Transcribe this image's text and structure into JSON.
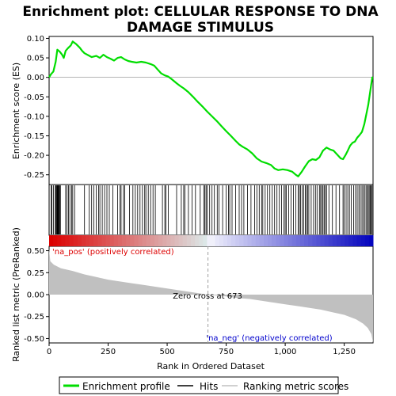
{
  "chart_data": {
    "type": "line",
    "title_lines": [
      "Enrichment plot: CELLULAR RESPONSE TO DNA",
      "DAMAGE STIMULUS"
    ],
    "panels": {
      "enrichment": {
        "ylabel": "Enrichment score (ES)",
        "ylim": [
          -0.275,
          0.105
        ],
        "yticks": [
          -0.25,
          -0.2,
          -0.15,
          -0.1,
          -0.05,
          0.0,
          0.05,
          0.1
        ],
        "ytick_labels": [
          "-0.25",
          "-0.20",
          "-0.15",
          "-0.10",
          "-0.05",
          "0.00",
          "0.05",
          "0.10"
        ],
        "series_name": "Enrichment profile",
        "color": "#00dd00",
        "points": [
          [
            0,
            0.0
          ],
          [
            8,
            0.008
          ],
          [
            18,
            0.015
          ],
          [
            28,
            0.04
          ],
          [
            35,
            0.071
          ],
          [
            45,
            0.066
          ],
          [
            55,
            0.058
          ],
          [
            62,
            0.05
          ],
          [
            70,
            0.068
          ],
          [
            80,
            0.075
          ],
          [
            92,
            0.082
          ],
          [
            100,
            0.092
          ],
          [
            115,
            0.085
          ],
          [
            130,
            0.076
          ],
          [
            140,
            0.068
          ],
          [
            150,
            0.062
          ],
          [
            165,
            0.057
          ],
          [
            180,
            0.052
          ],
          [
            200,
            0.055
          ],
          [
            215,
            0.05
          ],
          [
            230,
            0.058
          ],
          [
            245,
            0.052
          ],
          [
            260,
            0.048
          ],
          [
            275,
            0.043
          ],
          [
            290,
            0.05
          ],
          [
            305,
            0.052
          ],
          [
            320,
            0.046
          ],
          [
            335,
            0.042
          ],
          [
            350,
            0.04
          ],
          [
            370,
            0.038
          ],
          [
            390,
            0.04
          ],
          [
            410,
            0.038
          ],
          [
            430,
            0.034
          ],
          [
            445,
            0.03
          ],
          [
            460,
            0.02
          ],
          [
            475,
            0.01
          ],
          [
            490,
            0.005
          ],
          [
            505,
            0.002
          ],
          [
            520,
            -0.005
          ],
          [
            540,
            -0.015
          ],
          [
            555,
            -0.022
          ],
          [
            570,
            -0.028
          ],
          [
            590,
            -0.038
          ],
          [
            610,
            -0.05
          ],
          [
            630,
            -0.063
          ],
          [
            650,
            -0.075
          ],
          [
            670,
            -0.088
          ],
          [
            690,
            -0.1
          ],
          [
            710,
            -0.112
          ],
          [
            730,
            -0.125
          ],
          [
            750,
            -0.138
          ],
          [
            770,
            -0.15
          ],
          [
            790,
            -0.163
          ],
          [
            805,
            -0.172
          ],
          [
            820,
            -0.178
          ],
          [
            840,
            -0.185
          ],
          [
            860,
            -0.195
          ],
          [
            880,
            -0.208
          ],
          [
            900,
            -0.216
          ],
          [
            920,
            -0.22
          ],
          [
            940,
            -0.225
          ],
          [
            955,
            -0.234
          ],
          [
            970,
            -0.238
          ],
          [
            990,
            -0.236
          ],
          [
            1010,
            -0.238
          ],
          [
            1030,
            -0.242
          ],
          [
            1045,
            -0.25
          ],
          [
            1055,
            -0.254
          ],
          [
            1070,
            -0.242
          ],
          [
            1085,
            -0.228
          ],
          [
            1100,
            -0.215
          ],
          [
            1115,
            -0.21
          ],
          [
            1130,
            -0.212
          ],
          [
            1145,
            -0.205
          ],
          [
            1160,
            -0.188
          ],
          [
            1175,
            -0.18
          ],
          [
            1190,
            -0.185
          ],
          [
            1205,
            -0.188
          ],
          [
            1220,
            -0.198
          ],
          [
            1235,
            -0.208
          ],
          [
            1245,
            -0.21
          ],
          [
            1255,
            -0.2
          ],
          [
            1265,
            -0.188
          ],
          [
            1275,
            -0.175
          ],
          [
            1285,
            -0.168
          ],
          [
            1295,
            -0.165
          ],
          [
            1305,
            -0.155
          ],
          [
            1315,
            -0.148
          ],
          [
            1325,
            -0.14
          ],
          [
            1335,
            -0.12
          ],
          [
            1345,
            -0.09
          ],
          [
            1352,
            -0.07
          ],
          [
            1358,
            -0.045
          ],
          [
            1364,
            -0.02
          ],
          [
            1369,
            0.0
          ],
          [
            1372,
            0.0
          ]
        ]
      },
      "hits": {
        "series_name": "Hits",
        "positions": [
          8,
          12,
          18,
          26,
          29,
          32,
          34,
          36,
          38,
          40,
          42,
          45,
          48,
          70,
          76,
          82,
          88,
          96,
          100,
          108,
          150,
          170,
          180,
          190,
          200,
          210,
          215,
          225,
          235,
          245,
          255,
          270,
          290,
          300,
          305,
          315,
          320,
          340,
          355,
          365,
          375,
          385,
          395,
          405,
          410,
          420,
          430,
          440,
          450,
          480,
          490,
          495,
          505,
          540,
          560,
          570,
          575,
          590,
          605,
          620,
          640,
          655,
          660,
          665,
          670,
          680,
          690,
          700,
          712,
          720,
          735,
          750,
          760,
          765,
          775,
          790,
          805,
          815,
          825,
          840,
          855,
          870,
          880,
          890,
          900,
          905,
          915,
          925,
          935,
          945,
          955,
          965,
          975,
          985,
          995,
          1000,
          1005,
          1015,
          1025,
          1035,
          1045,
          1055,
          1060,
          1065,
          1072,
          1078,
          1085,
          1090,
          1095,
          1100,
          1110,
          1120,
          1128,
          1135,
          1145,
          1150,
          1155,
          1160,
          1165,
          1170,
          1175,
          1185,
          1200,
          1215,
          1230,
          1245,
          1250,
          1258,
          1265,
          1272,
          1280,
          1290,
          1298,
          1305,
          1312,
          1318,
          1325,
          1330,
          1336,
          1342,
          1347,
          1352,
          1356,
          1360,
          1364,
          1368
        ]
      },
      "metric": {
        "ylabel": "Ranked list metric (PreRanked)",
        "ylim": [
          -0.55,
          0.55
        ],
        "yticks": [
          -0.5,
          -0.25,
          0.0,
          0.25,
          0.5
        ],
        "ytick_labels": [
          "-0.50",
          "-0.25",
          "0.00",
          "0.25",
          "0.50"
        ],
        "series_name": "Ranking metric scores",
        "color": "#b0b0b0",
        "points": [
          [
            0,
            0.52
          ],
          [
            5,
            0.38
          ],
          [
            20,
            0.34
          ],
          [
            50,
            0.3
          ],
          [
            100,
            0.27
          ],
          [
            150,
            0.23
          ],
          [
            200,
            0.2
          ],
          [
            250,
            0.17
          ],
          [
            300,
            0.15
          ],
          [
            350,
            0.13
          ],
          [
            400,
            0.11
          ],
          [
            450,
            0.09
          ],
          [
            500,
            0.07
          ],
          [
            550,
            0.05
          ],
          [
            600,
            0.03
          ],
          [
            673,
            0.0
          ],
          [
            750,
            -0.02
          ],
          [
            800,
            -0.04
          ],
          [
            850,
            -0.05
          ],
          [
            900,
            -0.07
          ],
          [
            950,
            -0.09
          ],
          [
            1000,
            -0.11
          ],
          [
            1050,
            -0.13
          ],
          [
            1100,
            -0.15
          ],
          [
            1150,
            -0.17
          ],
          [
            1200,
            -0.2
          ],
          [
            1250,
            -0.23
          ],
          [
            1300,
            -0.28
          ],
          [
            1330,
            -0.33
          ],
          [
            1350,
            -0.38
          ],
          [
            1365,
            -0.45
          ],
          [
            1372,
            -0.55
          ]
        ],
        "annotations": {
          "pos_label": "'na_pos' (positively correlated)",
          "neg_label": "'na_neg' (negatively correlated)",
          "zero_cross_label": "Zero cross at 673",
          "zero_cross_rank": 673
        }
      }
    },
    "xlabel": "Rank in Ordered Dataset",
    "xlim": [
      0,
      1372
    ],
    "xticks": [
      0,
      250,
      500,
      750,
      1000,
      1250
    ],
    "xtick_labels": [
      "0",
      "250",
      "500",
      "750",
      "1,000",
      "1,250"
    ],
    "legend": {
      "placement": "bottom",
      "entries": [
        "Enrichment profile",
        "Hits",
        "Ranking metric scores"
      ]
    }
  },
  "colors": {
    "profile": "#00dd00",
    "hit": "#000000",
    "metric_fill": "#c0c0c0",
    "pos_text": "#dd0000",
    "neg_text": "#0000cc",
    "zero_line": "#a0a0a0"
  }
}
